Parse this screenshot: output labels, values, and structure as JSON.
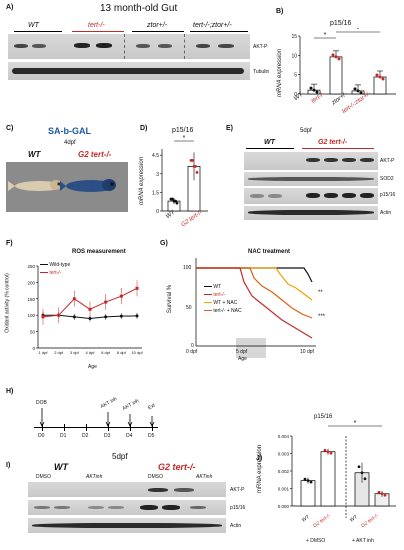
{
  "panels": {
    "A": {
      "label": "A)",
      "title": "13 month-old Gut",
      "groups": [
        "WT",
        "tert-/-",
        "ztor+/-",
        "tert-/-;ztor+/-"
      ],
      "rows": [
        "AKT-P",
        "Tubulin"
      ]
    },
    "B": {
      "label": "B)",
      "title": "p15/16",
      "ylabel": "mRNA expression",
      "chart_data": {
        "type": "bar",
        "categories": [
          "WT",
          "tert-/-",
          "ztor+/-",
          "tert-/-;ztor+/-"
        ],
        "values": [
          1.0,
          9.6,
          0.8,
          4.4
        ],
        "ylim": [
          0,
          15
        ],
        "yticks": [
          "0",
          "5",
          "10",
          "15"
        ],
        "colors": [
          "#111111",
          "#c62828",
          "#111111",
          "#c62828"
        ],
        "sig": [
          "*",
          "*"
        ]
      }
    },
    "C": {
      "label": "C)",
      "title": "SA-b-GAL",
      "subtitle": "4dpf",
      "groups": [
        "WT",
        "G2 tert-/-"
      ]
    },
    "D": {
      "label": "D)",
      "title": "p15/16",
      "ylabel": "mRNA expression",
      "chart_data": {
        "type": "bar",
        "categories": [
          "WT",
          "G2 tert-/-"
        ],
        "values": [
          0.8,
          3.6
        ],
        "ylim": [
          0,
          5
        ],
        "yticks": [
          "0",
          "1.5",
          "3",
          "4.5"
        ],
        "sig": "*"
      }
    },
    "E": {
      "label": "E)",
      "title": "5dpf",
      "groups": [
        "WT",
        "G2 tert-/-"
      ],
      "rows": [
        "AKT-P",
        "SOD2",
        "p15/16",
        "Actin"
      ]
    },
    "F": {
      "label": "F)",
      "title": "ROS measurement",
      "ylabel": "Oxidant activity (% control)",
      "xlabel": "Age",
      "chart_data": {
        "type": "line",
        "categories": [
          "1 dpf",
          "2 dpf",
          "3 dpf",
          "4 dpf",
          "6 dpf",
          "8 dpf",
          "10 dpf"
        ],
        "series": [
          {
            "name": "Wild-type",
            "values": [
              100,
              100,
              95,
              90,
              95,
              97,
              98
            ],
            "color": "#111111"
          },
          {
            "name": "tert-/-",
            "values": [
              95,
              100,
              150,
              118,
              140,
              158,
              182
            ],
            "color": "#c62828"
          }
        ],
        "ylim": [
          0,
          250
        ],
        "yticks": [
          "0",
          "50",
          "100",
          "150",
          "200",
          "250"
        ]
      }
    },
    "G": {
      "label": "G)",
      "title": "NAC treatment",
      "ylabel": "Survival %",
      "xlabel": "Age",
      "chart_data": {
        "type": "line",
        "x_ticks": [
          "0 dpf",
          "5 dpf",
          "10 dpf"
        ],
        "y_ticks": [
          "0",
          "50",
          "100"
        ],
        "series": [
          {
            "name": "WT",
            "color": "#111111"
          },
          {
            "name": "tert-/-",
            "color": "#c62828"
          },
          {
            "name": "WT + NAC",
            "color": "#f0a000"
          },
          {
            "name": "tert-/- + NAC",
            "color": "#e06010"
          }
        ],
        "sig": [
          "**",
          "***"
        ]
      }
    },
    "H": {
      "label": "H)",
      "days": [
        "D0",
        "D1",
        "D2",
        "D3",
        "D4",
        "D5"
      ],
      "events": [
        "DOB",
        "AKT inh",
        "AKT inh",
        "Ext"
      ]
    },
    "I": {
      "label": "I)",
      "title": "5dpf",
      "groups": [
        "WT",
        "G2 tert-/-"
      ],
      "lanes": [
        "DMSO",
        "AKTinh",
        "DMSO",
        "AKTinh"
      ],
      "rows": [
        "AKT-P",
        "p15/16",
        "Actin"
      ]
    },
    "J": {
      "label": "J)",
      "title": "p15/16",
      "ylabel": "mRNA expression",
      "chart_data": {
        "type": "bar",
        "categories": [
          "WT",
          "G2 tert-/-",
          "WT",
          "G2 tert-/-"
        ],
        "treatments": [
          "+ DMSO",
          "+ AKT inh"
        ],
        "values": [
          0.00145,
          0.0031,
          0.0019,
          0.0007
        ],
        "ylim": [
          0,
          0.004
        ],
        "yticks": [
          "0.000",
          "0.001",
          "0.002",
          "0.003",
          "0.004"
        ],
        "sig": "*"
      }
    }
  }
}
